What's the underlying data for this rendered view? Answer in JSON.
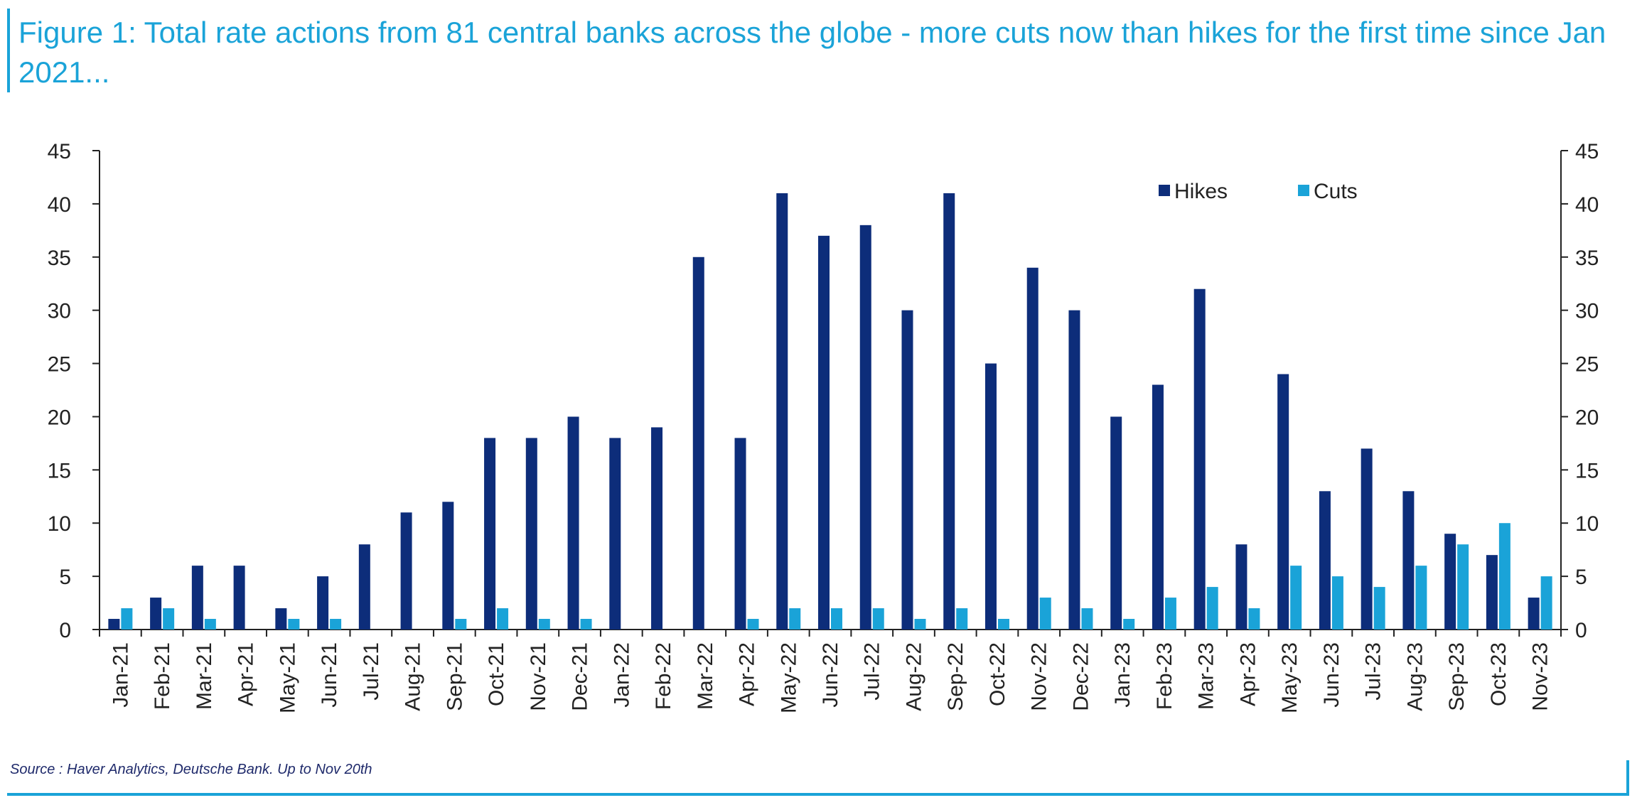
{
  "title": "Figure 1: Total rate actions from 81 central banks across the globe - more cuts now than hikes for the first time since Jan 2021...",
  "source": "Source : Haver Analytics, Deutsche Bank. Up to Nov 20th",
  "colors": {
    "hikes": "#0d2d7a",
    "cuts": "#1aa3d8",
    "title": "#1aa3d8",
    "axis": "#222222"
  },
  "chart_data": {
    "type": "bar",
    "title": "",
    "xlabel": "",
    "ylabel": "",
    "ylim": [
      0,
      45
    ],
    "yticks": [
      0,
      5,
      10,
      15,
      20,
      25,
      30,
      35,
      40,
      45
    ],
    "secondary_axis": true,
    "grid": false,
    "legend_position": "top-right",
    "categories": [
      "Jan-21",
      "Feb-21",
      "Mar-21",
      "Apr-21",
      "May-21",
      "Jun-21",
      "Jul-21",
      "Aug-21",
      "Sep-21",
      "Oct-21",
      "Nov-21",
      "Dec-21",
      "Jan-22",
      "Feb-22",
      "Mar-22",
      "Apr-22",
      "May-22",
      "Jun-22",
      "Jul-22",
      "Aug-22",
      "Sep-22",
      "Oct-22",
      "Nov-22",
      "Dec-22",
      "Jan-23",
      "Feb-23",
      "Mar-23",
      "Apr-23",
      "May-23",
      "Jun-23",
      "Jul-23",
      "Aug-23",
      "Sep-23",
      "Oct-23",
      "Nov-23"
    ],
    "series": [
      {
        "name": "Hikes",
        "color": "#0d2d7a",
        "values": [
          1,
          3,
          6,
          6,
          2,
          5,
          8,
          11,
          12,
          18,
          18,
          20,
          18,
          19,
          35,
          18,
          41,
          37,
          38,
          30,
          41,
          25,
          34,
          30,
          20,
          23,
          32,
          8,
          24,
          13,
          17,
          13,
          9,
          7,
          3
        ]
      },
      {
        "name": "Cuts",
        "color": "#1aa3d8",
        "values": [
          2,
          2,
          1,
          0,
          1,
          1,
          0,
          0,
          1,
          2,
          1,
          1,
          0,
          0,
          0,
          1,
          2,
          2,
          2,
          1,
          2,
          1,
          3,
          2,
          1,
          3,
          4,
          2,
          6,
          5,
          4,
          6,
          8,
          10,
          5
        ]
      }
    ]
  }
}
